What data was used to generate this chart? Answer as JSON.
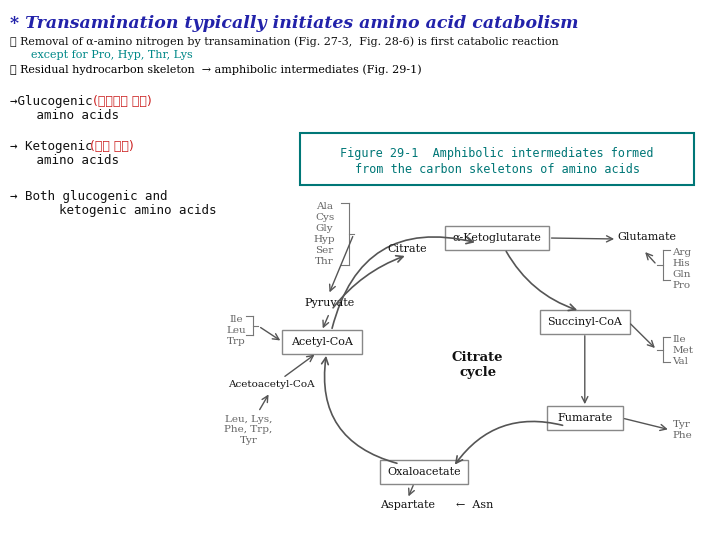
{
  "title": "* Transamination typically initiates amino acid catabolism",
  "title_color": "#2222AA",
  "bg_color": "#FFFFFF",
  "line1": "① Removal of α-amino nitrogen by transamination (Fig. 27-3,  Fig. 28-6) is first catabolic reaction",
  "line2": "      except for Pro, Hyp, Thr, Lys",
  "line2_color": "#008888",
  "line3": "② Residual hydrocarbon skeleton  → amphibolic intermediates (Fig. 29-1)",
  "line3_color": "#000000",
  "glucogenic_arrow": "→Glucogenic ",
  "glucogenic_korean": "(글루코스 생성)",
  "glucogenic_sub": "   amino acids",
  "ketogenic_arrow": "→ Ketogenic ",
  "ketogenic_korean": "(케톤 생성)",
  "ketogenic_sub": "   amino acids",
  "both_arrow": "→ Both glucogenic and",
  "both_sub": "      ketogenic amino acids",
  "figure_box_title": "Figure 29-1  Amphibolic intermediates formed",
  "figure_box_title2": "from the carbon skeletons of amino acids",
  "figure_box_color": "#007777",
  "arrow_color": "#555555",
  "text_color": "#000000",
  "cycle_label": "Citrate\ncycle",
  "node_alpha_kg": "α-Ketoglutarate",
  "node_succinyl": "Succinyl-CoA",
  "node_acetyl": "Acetyl-CoA",
  "node_oxaloacetate": "Oxaloacetate",
  "node_fumarate": "Fumarate",
  "aa_top": "Ala\nCys\nGly\nHyp\nSer\nThr",
  "aa_left": "Ile\nLeu\nTrp",
  "aa_right_top": "Arg\nHis\nGln\nPro",
  "aa_right_mid": "Ile\nMet\nVal",
  "aa_right_bot": "Tyr\nPhe",
  "label_citrate_top": "Citrate",
  "label_pyruvate": "Pyruvate",
  "label_acetoacetyl": "Acetoacetyl-CoA",
  "label_glutamate": "Glutamate"
}
